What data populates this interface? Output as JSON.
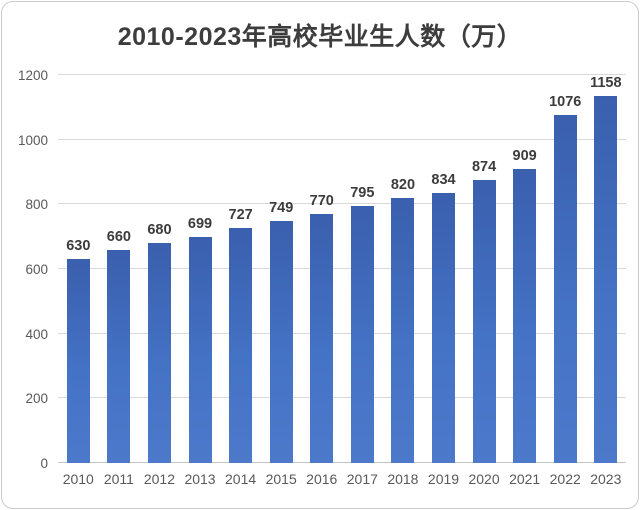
{
  "chart_data": {
    "type": "bar",
    "title": "2010-2023年高校毕业生人数（万）",
    "categories": [
      "2010",
      "2011",
      "2012",
      "2013",
      "2014",
      "2015",
      "2016",
      "2017",
      "2018",
      "2019",
      "2020",
      "2021",
      "2022",
      "2023"
    ],
    "values": [
      630,
      660,
      680,
      699,
      727,
      749,
      770,
      795,
      820,
      834,
      874,
      909,
      1076,
      1158
    ],
    "xlabel": "",
    "ylabel": "",
    "ylim": [
      0,
      1200
    ],
    "yticks": [
      0,
      200,
      400,
      600,
      800,
      1000,
      1200
    ],
    "grid": true,
    "legend_position": "none",
    "data_labels": true,
    "colors": {
      "bar": "#4472c4",
      "bar_gradient_top": "#3a5fae",
      "bar_gradient_bottom": "#4d79cb",
      "gridline": "#d9d9d9",
      "axis_tick_label": "#595959",
      "data_label": "#3c3c3c",
      "title": "#3d3d3d",
      "card_border": "#cbcbcb",
      "background": "#ffffff"
    }
  }
}
